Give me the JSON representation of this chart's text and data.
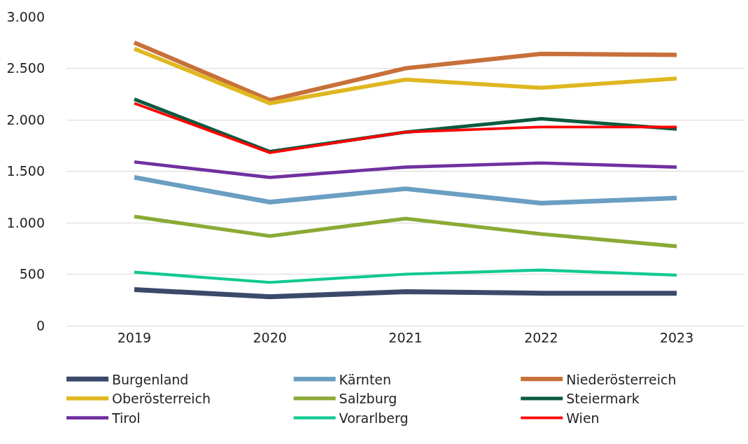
{
  "chart_data": {
    "type": "line",
    "categories": [
      "2019",
      "2020",
      "2021",
      "2022",
      "2023"
    ],
    "series": [
      {
        "name": "Burgenland",
        "color": "#3b4a6b",
        "values": [
          350,
          280,
          330,
          315,
          315
        ]
      },
      {
        "name": "Kärnten",
        "color": "#6a9ec2",
        "values": [
          1440,
          1200,
          1330,
          1190,
          1240
        ]
      },
      {
        "name": "Niederösterreich",
        "color": "#c8703a",
        "values": [
          2750,
          2190,
          2500,
          2640,
          2630
        ]
      },
      {
        "name": "Oberösterreich",
        "color": "#dfb720",
        "values": [
          2690,
          2160,
          2390,
          2310,
          2400
        ]
      },
      {
        "name": "Salzburg",
        "color": "#8aaa35",
        "values": [
          1060,
          870,
          1040,
          890,
          770
        ]
      },
      {
        "name": "Steiermark",
        "color": "#0b5b40",
        "values": [
          2200,
          1690,
          1880,
          2010,
          1910
        ]
      },
      {
        "name": "Tirol",
        "color": "#7030a0",
        "values": [
          1590,
          1440,
          1540,
          1580,
          1540
        ]
      },
      {
        "name": "Vorarlberg",
        "color": "#10c990",
        "values": [
          520,
          420,
          500,
          540,
          490
        ]
      },
      {
        "name": "Wien",
        "color": "#ff0000",
        "values": [
          2160,
          1680,
          1880,
          1930,
          1930
        ]
      }
    ],
    "ylim": [
      0,
      3000
    ],
    "yticks": [
      0,
      {
        "value": 500,
        "label": "500"
      },
      {
        "value": 1000,
        "label": "1.000"
      },
      {
        "value": 1500,
        "label": "1.500"
      },
      {
        "value": 2000,
        "label": "2.000"
      },
      {
        "value": 2500,
        "label": "2.500"
      },
      {
        "value": 3000,
        "label": "3.000"
      }
    ],
    "grid": "y",
    "legend": "bottom",
    "marker": "none",
    "line_style": "solid"
  }
}
